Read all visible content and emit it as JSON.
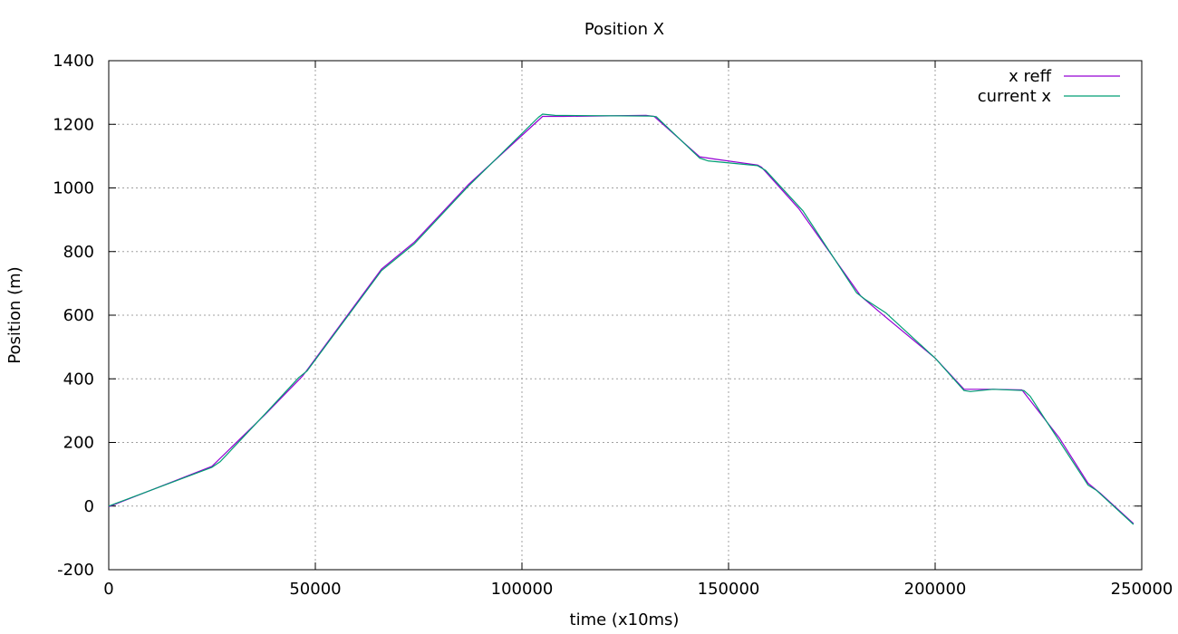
{
  "chart_data": {
    "type": "line",
    "title": "Position X",
    "xlabel": "time (x10ms)",
    "ylabel": "Position (m)",
    "xlim": [
      0,
      250000
    ],
    "ylim": [
      -200,
      1400
    ],
    "x_ticks": [
      0,
      50000,
      100000,
      150000,
      200000,
      250000
    ],
    "y_ticks": [
      -200,
      0,
      200,
      400,
      600,
      800,
      1000,
      1200,
      1400
    ],
    "grid": true,
    "legend_position": "top-right",
    "series": [
      {
        "name": "x reff",
        "color": "#9400d3",
        "x": [
          0,
          25000,
          38000,
          47000,
          66000,
          74000,
          87000,
          105000,
          110000,
          130000,
          132000,
          143000,
          147000,
          157000,
          158000,
          167000,
          182000,
          187000,
          200000,
          207000,
          214000,
          221000,
          230000,
          237000,
          240000,
          248000
        ],
        "y": [
          -2,
          125,
          290,
          410,
          745,
          830,
          1010,
          1225,
          1225,
          1228,
          1225,
          1098,
          1090,
          1072,
          1065,
          935,
          660,
          605,
          465,
          367,
          367,
          365,
          215,
          72,
          40,
          -55
        ]
      },
      {
        "name": "current x",
        "color": "#009e73",
        "x": [
          0,
          25000,
          27000,
          38000,
          46000,
          48000,
          66000,
          74000,
          87000,
          104000,
          105000,
          108000,
          131000,
          132500,
          143000,
          145000,
          157000,
          159000,
          168000,
          181000,
          183000,
          188000,
          200000,
          207000,
          208500,
          214000,
          221500,
          223000,
          237000,
          239000,
          248000
        ],
        "y": [
          0,
          122,
          140,
          292,
          404,
          425,
          740,
          825,
          1005,
          1222,
          1232,
          1228,
          1226,
          1224,
          1094,
          1085,
          1070,
          1055,
          928,
          670,
          650,
          608,
          465,
          363,
          360,
          367,
          363,
          345,
          66,
          50,
          -58
        ]
      }
    ]
  }
}
